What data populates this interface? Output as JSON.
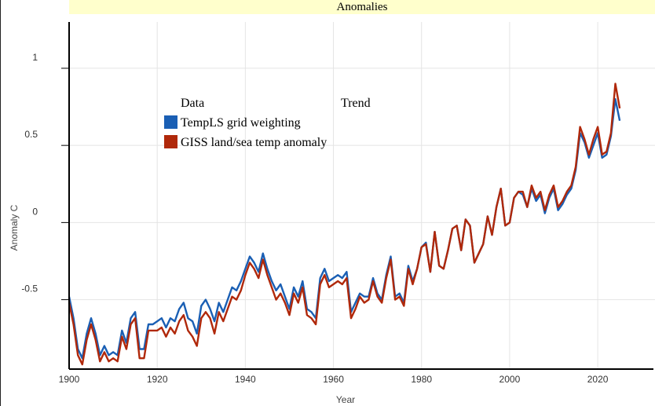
{
  "chart_data": {
    "type": "line",
    "title": "Anomalies",
    "xlabel": "Year",
    "ylabel": "Anomaly C",
    "xlim": [
      1900,
      2033
    ],
    "ylim": [
      -0.95,
      1.3
    ],
    "xticks": [
      "1900",
      "1920",
      "1940",
      "1960",
      "1980",
      "2000",
      "2020"
    ],
    "yticks": [
      "1",
      "0.5",
      "0",
      "-0.5"
    ],
    "grid": true,
    "legend": {
      "position": "upper-left",
      "header_data": "Data",
      "header_trend": "Trend"
    },
    "series": [
      {
        "name": "TempLS grid weighting",
        "color": "#1a5fb4",
        "x": [
          1900,
          1901,
          1902,
          1903,
          1904,
          1905,
          1906,
          1907,
          1908,
          1909,
          1910,
          1911,
          1912,
          1913,
          1914,
          1915,
          1916,
          1917,
          1918,
          1919,
          1920,
          1921,
          1922,
          1923,
          1924,
          1925,
          1926,
          1927,
          1928,
          1929,
          1930,
          1931,
          1932,
          1933,
          1934,
          1935,
          1936,
          1937,
          1938,
          1939,
          1940,
          1941,
          1942,
          1943,
          1944,
          1945,
          1946,
          1947,
          1948,
          1949,
          1950,
          1951,
          1952,
          1953,
          1954,
          1955,
          1956,
          1957,
          1958,
          1959,
          1960,
          1961,
          1962,
          1963,
          1964,
          1965,
          1966,
          1967,
          1968,
          1969,
          1970,
          1971,
          1972,
          1973,
          1974,
          1975,
          1976,
          1977,
          1978,
          1979,
          1980,
          1981,
          1982,
          1983,
          1984,
          1985,
          1986,
          1987,
          1988,
          1989,
          1990,
          1991,
          1992,
          1993,
          1994,
          1995,
          1996,
          1997,
          1998,
          1999,
          2000,
          2001,
          2002,
          2003,
          2004,
          2005,
          2006,
          2007,
          2008,
          2009,
          2010,
          2011,
          2012,
          2013,
          2014,
          2015,
          2016,
          2017,
          2018,
          2019,
          2020,
          2021,
          2022,
          2023,
          2024,
          2025
        ],
        "y": [
          -0.48,
          -0.62,
          -0.82,
          -0.88,
          -0.72,
          -0.62,
          -0.72,
          -0.86,
          -0.8,
          -0.86,
          -0.84,
          -0.86,
          -0.7,
          -0.78,
          -0.62,
          -0.58,
          -0.82,
          -0.82,
          -0.66,
          -0.66,
          -0.64,
          -0.62,
          -0.68,
          -0.62,
          -0.64,
          -0.56,
          -0.52,
          -0.62,
          -0.64,
          -0.72,
          -0.54,
          -0.5,
          -0.56,
          -0.64,
          -0.52,
          -0.58,
          -0.5,
          -0.42,
          -0.44,
          -0.38,
          -0.3,
          -0.22,
          -0.26,
          -0.32,
          -0.2,
          -0.3,
          -0.38,
          -0.44,
          -0.4,
          -0.48,
          -0.56,
          -0.42,
          -0.48,
          -0.38,
          -0.56,
          -0.58,
          -0.62,
          -0.36,
          -0.3,
          -0.38,
          -0.36,
          -0.34,
          -0.36,
          -0.32,
          -0.58,
          -0.52,
          -0.46,
          -0.48,
          -0.48,
          -0.36,
          -0.46,
          -0.5,
          -0.34,
          -0.22,
          -0.48,
          -0.46,
          -0.52,
          -0.28,
          -0.38,
          -0.3,
          -0.16,
          -0.13,
          -0.32,
          -0.06,
          -0.28,
          -0.3,
          -0.18,
          -0.04,
          -0.02,
          -0.18,
          0.02,
          -0.02,
          -0.26,
          -0.2,
          -0.14,
          0.04,
          -0.08,
          0.1,
          0.22,
          -0.02,
          0.0,
          0.16,
          0.2,
          0.18,
          0.1,
          0.22,
          0.14,
          0.18,
          0.06,
          0.16,
          0.22,
          0.08,
          0.12,
          0.18,
          0.22,
          0.34,
          0.58,
          0.52,
          0.42,
          0.5,
          0.58,
          0.42,
          0.44,
          0.56,
          0.8,
          0.66
        ]
      },
      {
        "name": "GISS land/sea temp anomaly",
        "color": "#b0280a",
        "x": [
          1900,
          1901,
          1902,
          1903,
          1904,
          1905,
          1906,
          1907,
          1908,
          1909,
          1910,
          1911,
          1912,
          1913,
          1914,
          1915,
          1916,
          1917,
          1918,
          1919,
          1920,
          1921,
          1922,
          1923,
          1924,
          1925,
          1926,
          1927,
          1928,
          1929,
          1930,
          1931,
          1932,
          1933,
          1934,
          1935,
          1936,
          1937,
          1938,
          1939,
          1940,
          1941,
          1942,
          1943,
          1944,
          1945,
          1946,
          1947,
          1948,
          1949,
          1950,
          1951,
          1952,
          1953,
          1954,
          1955,
          1956,
          1957,
          1958,
          1959,
          1960,
          1961,
          1962,
          1963,
          1964,
          1965,
          1966,
          1967,
          1968,
          1969,
          1970,
          1971,
          1972,
          1973,
          1974,
          1975,
          1976,
          1977,
          1978,
          1979,
          1980,
          1981,
          1982,
          1983,
          1984,
          1985,
          1986,
          1987,
          1988,
          1989,
          1990,
          1991,
          1992,
          1993,
          1994,
          1995,
          1996,
          1997,
          1998,
          1999,
          2000,
          2001,
          2002,
          2003,
          2004,
          2005,
          2006,
          2007,
          2008,
          2009,
          2010,
          2011,
          2012,
          2013,
          2014,
          2015,
          2016,
          2017,
          2018,
          2019,
          2020,
          2021,
          2022,
          2023,
          2024,
          2025
        ],
        "y": [
          -0.52,
          -0.66,
          -0.86,
          -0.92,
          -0.76,
          -0.66,
          -0.76,
          -0.9,
          -0.84,
          -0.9,
          -0.88,
          -0.9,
          -0.74,
          -0.82,
          -0.66,
          -0.62,
          -0.88,
          -0.88,
          -0.7,
          -0.7,
          -0.7,
          -0.68,
          -0.74,
          -0.68,
          -0.72,
          -0.64,
          -0.6,
          -0.7,
          -0.74,
          -0.8,
          -0.62,
          -0.58,
          -0.62,
          -0.72,
          -0.58,
          -0.64,
          -0.56,
          -0.48,
          -0.5,
          -0.44,
          -0.34,
          -0.26,
          -0.3,
          -0.36,
          -0.24,
          -0.34,
          -0.42,
          -0.5,
          -0.46,
          -0.52,
          -0.6,
          -0.46,
          -0.52,
          -0.42,
          -0.6,
          -0.62,
          -0.66,
          -0.4,
          -0.34,
          -0.42,
          -0.4,
          -0.38,
          -0.4,
          -0.36,
          -0.62,
          -0.56,
          -0.48,
          -0.52,
          -0.5,
          -0.38,
          -0.48,
          -0.52,
          -0.36,
          -0.24,
          -0.5,
          -0.48,
          -0.54,
          -0.3,
          -0.4,
          -0.3,
          -0.16,
          -0.14,
          -0.32,
          -0.06,
          -0.28,
          -0.3,
          -0.18,
          -0.04,
          -0.02,
          -0.18,
          0.02,
          -0.02,
          -0.26,
          -0.2,
          -0.14,
          0.04,
          -0.08,
          0.1,
          0.22,
          -0.02,
          0.0,
          0.16,
          0.2,
          0.2,
          0.1,
          0.24,
          0.16,
          0.2,
          0.08,
          0.18,
          0.24,
          0.1,
          0.14,
          0.2,
          0.24,
          0.36,
          0.62,
          0.54,
          0.44,
          0.54,
          0.62,
          0.44,
          0.46,
          0.58,
          0.9,
          0.74
        ]
      }
    ]
  }
}
